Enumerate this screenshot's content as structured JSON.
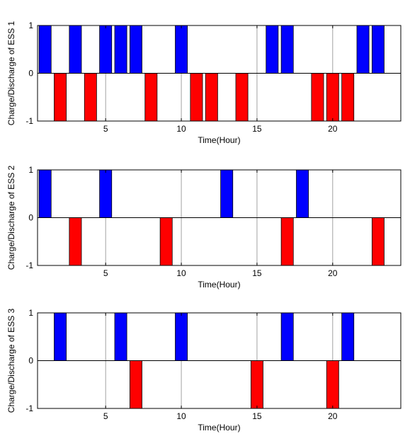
{
  "chart_data": [
    {
      "type": "bar",
      "ylabel": "Charge/Discharge of ESS 1",
      "xlabel": "Time(Hour)",
      "xlim": [
        0.5,
        24.5
      ],
      "ylim": [
        -1,
        1
      ],
      "xticks": [
        5,
        10,
        15,
        20
      ],
      "yticks": [
        -1,
        0,
        1
      ],
      "x": [
        1,
        2,
        3,
        4,
        5,
        6,
        7,
        8,
        9,
        10,
        11,
        12,
        13,
        14,
        15,
        16,
        17,
        18,
        19,
        20,
        21,
        22,
        23,
        24
      ],
      "values": [
        1,
        -1,
        1,
        -1,
        1,
        1,
        1,
        -1,
        0,
        1,
        -1,
        -1,
        0,
        -1,
        0,
        1,
        1,
        0,
        -1,
        -1,
        -1,
        1,
        1,
        0
      ],
      "grid": "x-major"
    },
    {
      "type": "bar",
      "ylabel": "Charge/Discharge of ESS 2",
      "xlabel": "Time(Hour)",
      "xlim": [
        0.5,
        24.5
      ],
      "ylim": [
        -1,
        1
      ],
      "xticks": [
        5,
        10,
        15,
        20
      ],
      "yticks": [
        -1,
        0,
        1
      ],
      "x": [
        1,
        2,
        3,
        4,
        5,
        6,
        7,
        8,
        9,
        10,
        11,
        12,
        13,
        14,
        15,
        16,
        17,
        18,
        19,
        20,
        21,
        22,
        23,
        24
      ],
      "values": [
        1,
        0,
        -1,
        0,
        1,
        0,
        0,
        0,
        -1,
        0,
        0,
        0,
        1,
        0,
        0,
        0,
        -1,
        1,
        0,
        0,
        0,
        0,
        -1,
        0
      ],
      "grid": "x-major"
    },
    {
      "type": "bar",
      "ylabel": "Charge/Discharge of ESS 3",
      "xlabel": "Time(Hour)",
      "xlim": [
        0.5,
        24.5
      ],
      "ylim": [
        -1,
        1
      ],
      "xticks": [
        5,
        10,
        15,
        20
      ],
      "yticks": [
        -1,
        0,
        1
      ],
      "x": [
        1,
        2,
        3,
        4,
        5,
        6,
        7,
        8,
        9,
        10,
        11,
        12,
        13,
        14,
        15,
        16,
        17,
        18,
        19,
        20,
        21,
        22,
        23,
        24
      ],
      "values": [
        0,
        1,
        0,
        0,
        0,
        1,
        -1,
        0,
        0,
        1,
        0,
        0,
        0,
        0,
        -1,
        0,
        1,
        0,
        0,
        -1,
        1,
        0,
        0,
        0
      ],
      "grid": "x-major"
    }
  ],
  "colors": {
    "charge": "#0000ff",
    "discharge": "#ff0000",
    "grid": "#a0a0a0",
    "axes": "#000000"
  }
}
